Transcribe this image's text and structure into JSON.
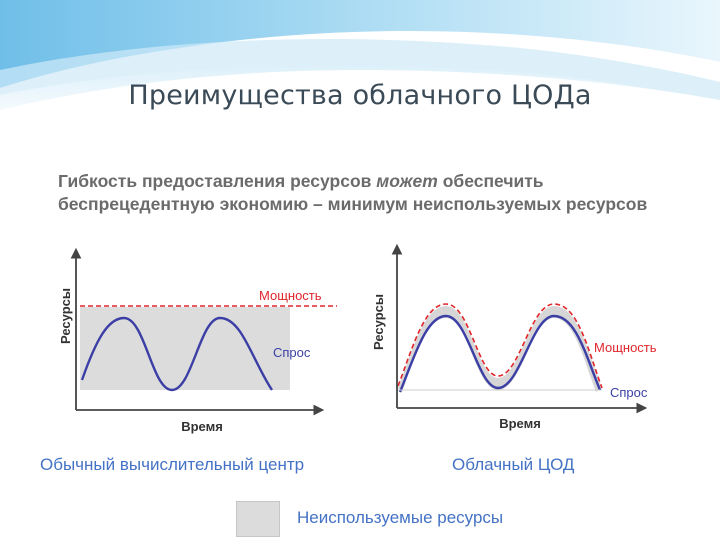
{
  "title": "Преимущества облачного ЦОДа",
  "intro": {
    "part1": "Гибкость предоставления ресурсов ",
    "emphasis": "может",
    "part2": " обеспечить беспрецедентную экономию – минимум неиспользуемых ресурсов"
  },
  "left_chart": {
    "y_axis_label": "Ресурсы",
    "x_axis_label": "Время",
    "capacity_label": "Мощность",
    "demand_label": "Спрос",
    "caption": "Обычный вычислительный центр"
  },
  "right_chart": {
    "y_axis_label": "Ресурсы",
    "x_axis_label": "Время",
    "capacity_label": "Мощность",
    "demand_label": "Спрос",
    "caption": "Облачный ЦОД"
  },
  "legend": {
    "label": "Неиспользуемые ресурсы"
  },
  "colors": {
    "demand": "#3b3fa5",
    "capacity": "#e0262b",
    "unused": "#dcdcdc",
    "axis": "#444444",
    "caption": "#4472c4"
  }
}
